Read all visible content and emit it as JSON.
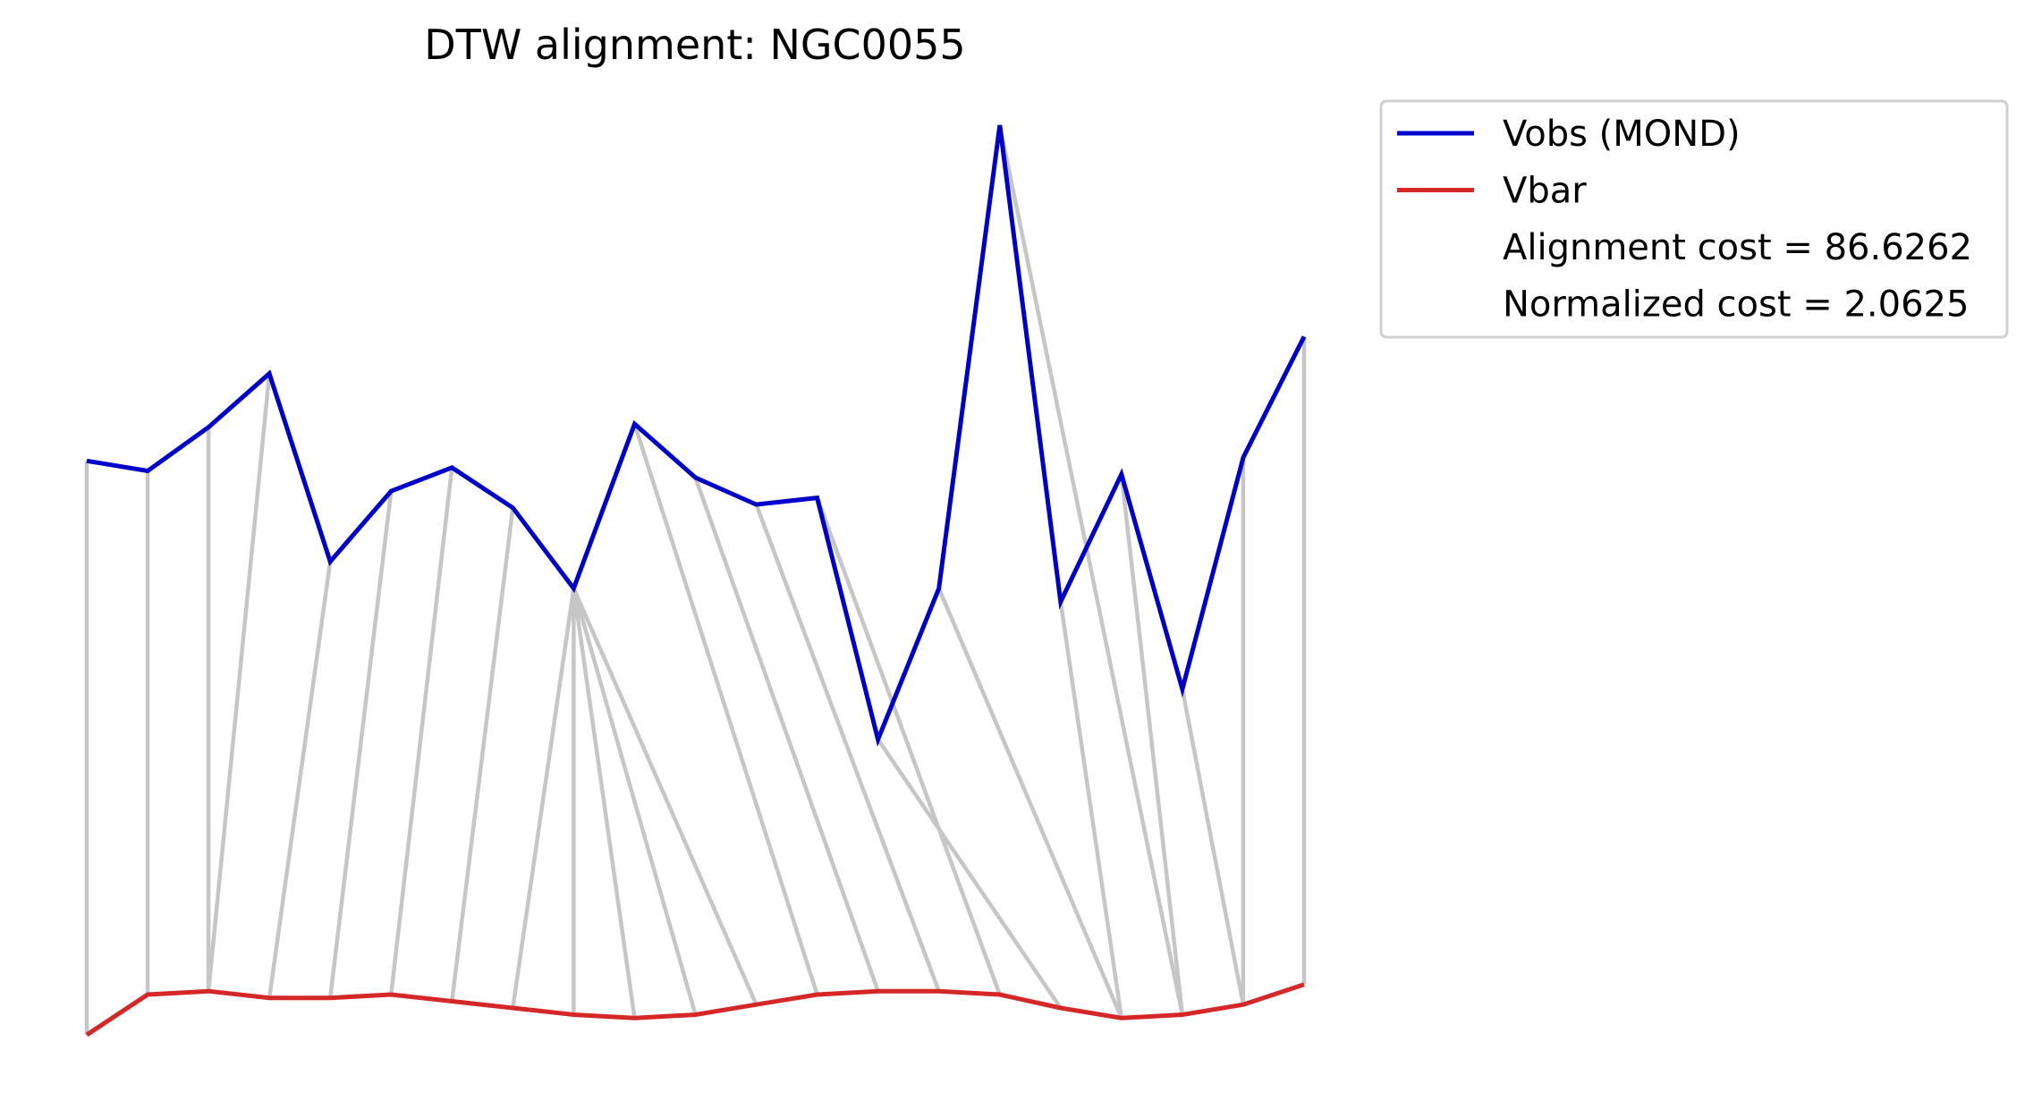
{
  "chart_data": {
    "type": "line",
    "title": "DTW alignment: NGC0055",
    "axes_visible": false,
    "grid": false,
    "legend_placement": "outside-top-right",
    "series": [
      {
        "name": "Vobs (MOND)",
        "color": "#0000cc",
        "values": [
          5.8,
          5.5,
          6.8,
          8.4,
          2.8,
          4.9,
          5.6,
          4.4,
          2.0,
          6.9,
          5.3,
          4.5,
          4.7,
          -2.5,
          2.0,
          15.8,
          1.6,
          5.4,
          -1.0,
          5.9,
          9.5
        ]
      },
      {
        "name": "Vbar",
        "color": "#d62728",
        "values": [
          -11.3,
          -10.1,
          -10.0,
          -10.2,
          -10.2,
          -10.1,
          -10.3,
          -10.5,
          -10.7,
          -10.8,
          -10.7,
          -10.4,
          -10.1,
          -10.0,
          -10.0,
          -10.1,
          -10.5,
          -10.8,
          -10.7,
          -10.4,
          -9.8
        ]
      }
    ],
    "alignment_path": [
      [
        0,
        0
      ],
      [
        1,
        1
      ],
      [
        2,
        2
      ],
      [
        3,
        2
      ],
      [
        4,
        3
      ],
      [
        5,
        4
      ],
      [
        6,
        5
      ],
      [
        7,
        6
      ],
      [
        8,
        7
      ],
      [
        8,
        8
      ],
      [
        8,
        9
      ],
      [
        8,
        10
      ],
      [
        8,
        11
      ],
      [
        9,
        12
      ],
      [
        10,
        13
      ],
      [
        11,
        14
      ],
      [
        12,
        15
      ],
      [
        13,
        16
      ],
      [
        14,
        17
      ],
      [
        15,
        18
      ],
      [
        16,
        17
      ],
      [
        17,
        18
      ],
      [
        18,
        19
      ],
      [
        19,
        19
      ],
      [
        20,
        20
      ]
    ],
    "connector_color": "#c6c6c6",
    "legend_entries": [
      {
        "label": "Vobs (MOND)",
        "color": "#0000cc",
        "line": true
      },
      {
        "label": "Vbar",
        "color": "#d62728",
        "line": true
      },
      {
        "label": "Alignment cost = 86.6262",
        "line": false
      },
      {
        "label": "Normalized cost = 2.0625",
        "line": false
      }
    ]
  }
}
